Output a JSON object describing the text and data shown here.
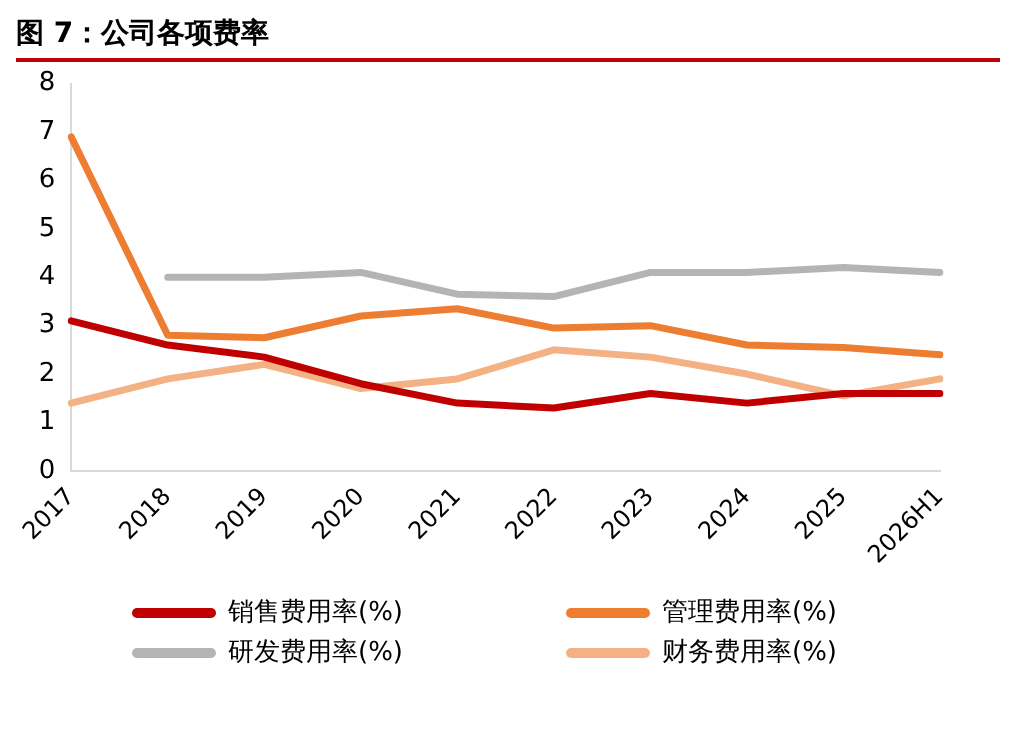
{
  "chart_data": {
    "type": "line",
    "title": "图 7：公司各项费率",
    "categories": [
      "2017",
      "2018",
      "2019",
      "2020",
      "2021",
      "2022",
      "2023",
      "2024",
      "2025",
      "2026H1"
    ],
    "series": [
      {
        "name": "销售费用率(%)",
        "color": "#c00000",
        "values": [
          3.1,
          2.6,
          2.35,
          1.8,
          1.4,
          1.3,
          1.6,
          1.4,
          1.6,
          1.6
        ]
      },
      {
        "name": "管理费用率(%)",
        "color": "#ed7d31",
        "values": [
          6.9,
          2.8,
          2.75,
          3.2,
          3.35,
          2.95,
          3.0,
          2.6,
          2.55,
          2.4
        ]
      },
      {
        "name": "研发费用率(%)",
        "color": "#b4b4b4",
        "values": [
          null,
          4.0,
          4.0,
          4.1,
          3.65,
          3.6,
          4.1,
          4.1,
          4.2,
          4.1
        ]
      },
      {
        "name": "财务费用率(%)",
        "color": "#f4b183",
        "values": [
          1.4,
          1.9,
          2.2,
          1.7,
          1.9,
          2.5,
          2.35,
          2.0,
          1.55,
          1.9
        ]
      }
    ],
    "ylim": [
      0,
      8
    ],
    "yticks": [
      0,
      1,
      2,
      3,
      4,
      5,
      6,
      7,
      8
    ],
    "grid": false,
    "legend": "bottom",
    "marker": "none",
    "line_style": "solid"
  }
}
